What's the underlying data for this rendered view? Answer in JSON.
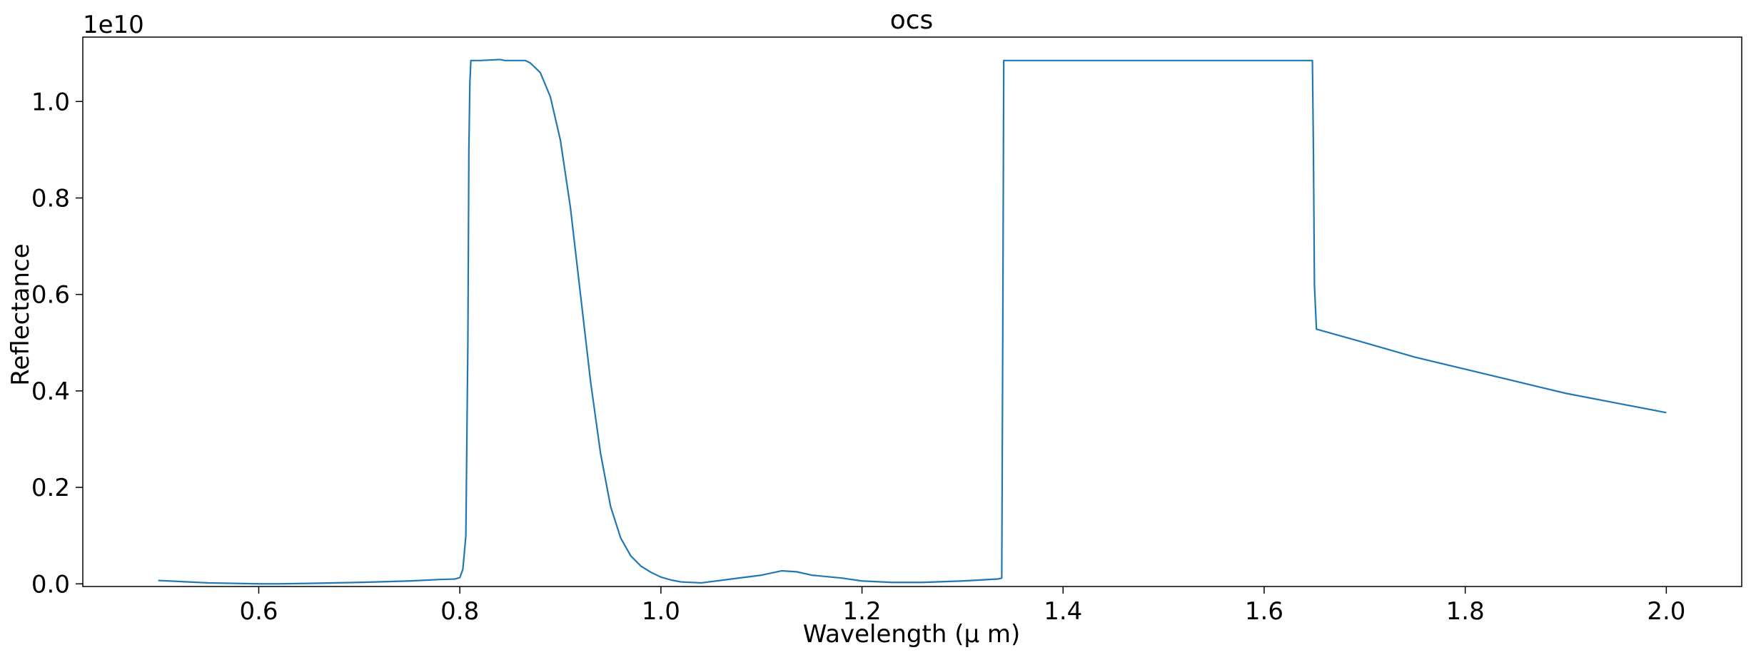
{
  "chart_data": {
    "type": "line",
    "title": "ocs",
    "xlabel": "Wavelength (μ m)",
    "ylabel": "Reflectance",
    "y_multiplier_label": "1e10",
    "xlim": [
      0.425,
      2.075
    ],
    "ylim": [
      -0.0055,
      1.1335
    ],
    "x_ticks": [
      0.6,
      0.8,
      1.0,
      1.2,
      1.4,
      1.6,
      1.8,
      2.0
    ],
    "x_tick_labels": [
      "0.6",
      "0.8",
      "1.0",
      "1.2",
      "1.4",
      "1.6",
      "1.8",
      "2.0"
    ],
    "y_ticks": [
      0.0,
      0.2,
      0.4,
      0.6,
      0.8,
      1.0
    ],
    "y_tick_labels": [
      "0.0",
      "0.2",
      "0.4",
      "0.6",
      "0.8",
      "1.0"
    ],
    "grid": false,
    "line_color": "#1f77b4",
    "series": [
      {
        "x": [
          0.5,
          0.55,
          0.6,
          0.62,
          0.65,
          0.7,
          0.75,
          0.78,
          0.795,
          0.8,
          0.803,
          0.806,
          0.808,
          0.809,
          0.81,
          0.811,
          0.812,
          0.82,
          0.84,
          0.845,
          0.85,
          0.865,
          0.87,
          0.88,
          0.89,
          0.9,
          0.91,
          0.92,
          0.93,
          0.94,
          0.95,
          0.96,
          0.97,
          0.98,
          0.99,
          1.0,
          1.01,
          1.02,
          1.04,
          1.07,
          1.1,
          1.12,
          1.135,
          1.15,
          1.18,
          1.2,
          1.23,
          1.26,
          1.3,
          1.335,
          1.339,
          1.34,
          1.341,
          1.345,
          1.4,
          1.45,
          1.5,
          1.55,
          1.6,
          1.648,
          1.649,
          1.65,
          1.652,
          1.7,
          1.75,
          1.8,
          1.85,
          1.9,
          1.95,
          2.0
        ],
        "y": [
          0.007,
          0.002,
          0.0,
          0.0,
          0.001,
          0.003,
          0.006,
          0.009,
          0.01,
          0.013,
          0.03,
          0.1,
          0.5,
          0.9,
          1.04,
          1.085,
          1.085,
          1.085,
          1.087,
          1.085,
          1.085,
          1.085,
          1.08,
          1.06,
          1.01,
          0.92,
          0.78,
          0.6,
          0.42,
          0.27,
          0.16,
          0.095,
          0.058,
          0.037,
          0.024,
          0.014,
          0.008,
          0.004,
          0.002,
          0.01,
          0.018,
          0.027,
          0.025,
          0.018,
          0.012,
          0.006,
          0.003,
          0.003,
          0.006,
          0.01,
          0.012,
          0.5,
          1.085,
          1.085,
          1.085,
          1.085,
          1.085,
          1.085,
          1.085,
          1.085,
          0.9,
          0.62,
          0.528,
          0.5,
          0.47,
          0.445,
          0.42,
          0.395,
          0.375,
          0.355
        ]
      }
    ]
  }
}
